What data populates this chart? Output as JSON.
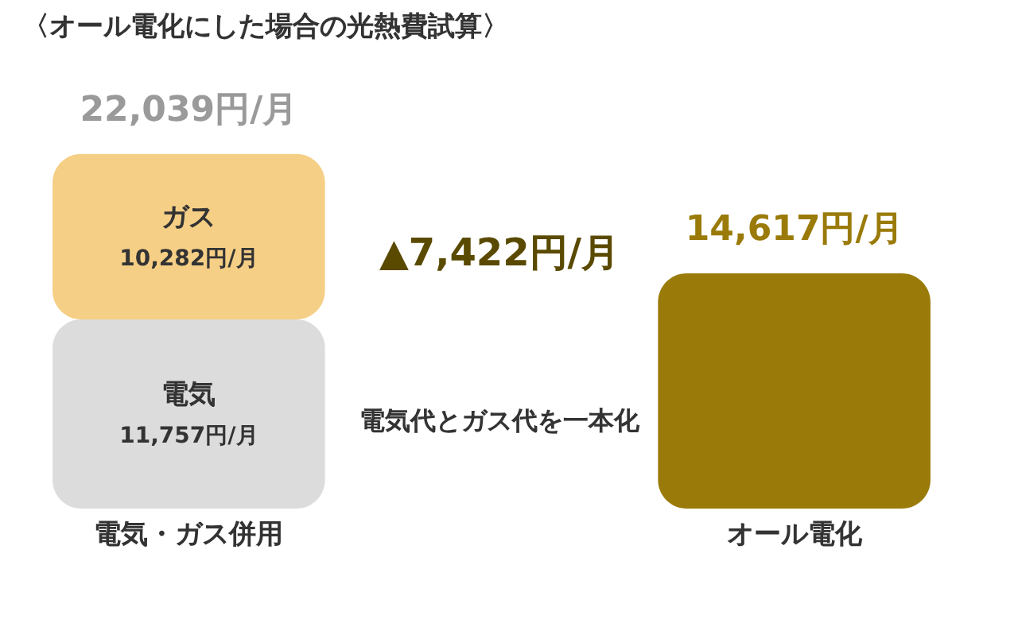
{
  "chart_data": {
    "type": "bar",
    "title": "〈オール電化にした場合の光熱費試算〉",
    "categories": [
      "電気・ガス併用",
      "オール電化"
    ],
    "stacked": true,
    "tick_labels": "x",
    "grid": false,
    "series": [
      {
        "name": "電気",
        "color": "#dcdcdc",
        "values": [
          11757,
          null
        ],
        "value_labels": [
          "11,757円/月",
          null
        ]
      },
      {
        "name": "ガス",
        "color": "#f6cf86",
        "values": [
          10282,
          null
        ],
        "value_labels": [
          "10,282円/月",
          null
        ]
      },
      {
        "color": "#9a7b0a",
        "values": [
          null,
          14617
        ]
      }
    ],
    "totals": [
      "22,039円/月",
      "14,617円/月"
    ],
    "annotations": [
      "▲7,422円/月",
      "電気代とガス代を一本化"
    ]
  }
}
